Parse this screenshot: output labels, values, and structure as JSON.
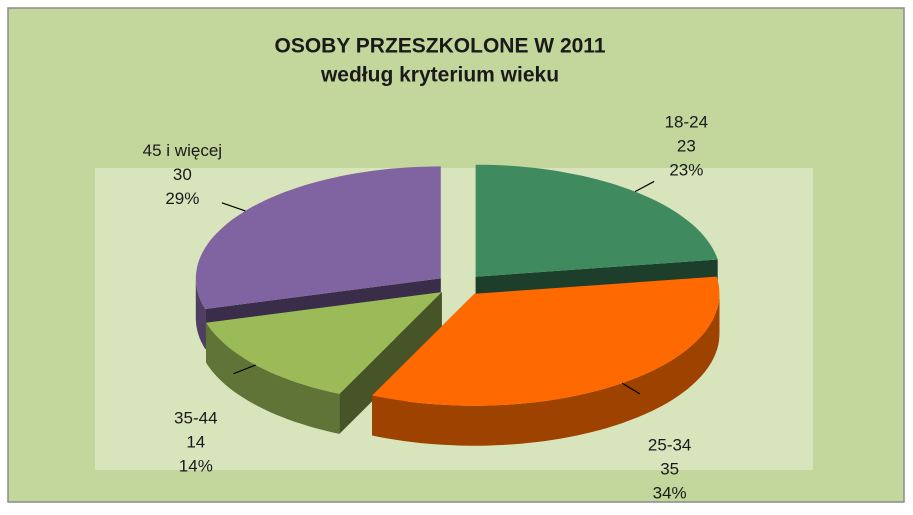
{
  "chart_data": {
    "type": "pie3d",
    "title": "OSOBY PRZESZKOLONE W 2011",
    "subtitle": "według kryterium  wieku",
    "categories": [
      "18-24",
      "25-34",
      "35-44",
      "45 i więcej"
    ],
    "values": [
      23,
      35,
      14,
      30
    ],
    "percent_labels": [
      "23%",
      "34%",
      "14%",
      "29%"
    ],
    "colors": [
      "#3f8a5f",
      "#ff6a00",
      "#9bbb59",
      "#8064a2"
    ],
    "exploded": true
  }
}
